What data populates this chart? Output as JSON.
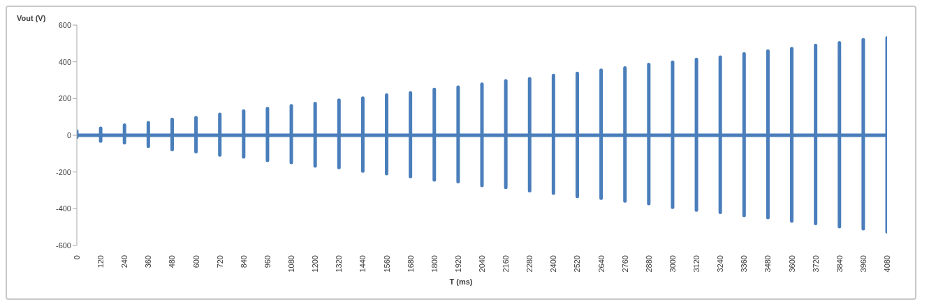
{
  "chart_data": {
    "type": "line",
    "xlabel": "T (ms)",
    "ylabel": "Vout (V)",
    "x": [
      0,
      0,
      0,
      0,
      120,
      120,
      120,
      120,
      240,
      240,
      240,
      240,
      360,
      360,
      360,
      360,
      480,
      480,
      480,
      480,
      600,
      600,
      600,
      600,
      720,
      720,
      720,
      720,
      840,
      840,
      840,
      840,
      960,
      960,
      960,
      960,
      1080,
      1080,
      1080,
      1080,
      1200,
      1200,
      1200,
      1200,
      1320,
      1320,
      1320,
      1320,
      1440,
      1440,
      1440,
      1440,
      1560,
      1560,
      1560,
      1560,
      1680,
      1680,
      1680,
      1680,
      1800,
      1800,
      1800,
      1800,
      1920,
      1920,
      1920,
      1920,
      2040,
      2040,
      2040,
      2040,
      2160,
      2160,
      2160,
      2160,
      2280,
      2280,
      2280,
      2280,
      2400,
      2400,
      2400,
      2400,
      2520,
      2520,
      2520,
      2520,
      2640,
      2640,
      2640,
      2640,
      2760,
      2760,
      2760,
      2760,
      2880,
      2880,
      2880,
      2880,
      3000,
      3000,
      3000,
      3000,
      3120,
      3120,
      3120,
      3120,
      3240,
      3240,
      3240,
      3240,
      3360,
      3360,
      3360,
      3360,
      3480,
      3480,
      3480,
      3480,
      3600,
      3600,
      3600,
      3600,
      3720,
      3720,
      3720,
      3720,
      3840,
      3840,
      3840,
      3840,
      3960,
      3960,
      3960,
      3960,
      4080,
      4080,
      4080,
      4080
    ],
    "series": [
      {
        "color": "#4a7ebb",
        "values": [
          0,
          23,
          -10,
          0,
          0,
          38,
          -31,
          0,
          0,
          55,
          -41,
          0,
          0,
          68,
          -60,
          0,
          0,
          86,
          -78,
          0,
          0,
          96,
          -89,
          0,
          0,
          114,
          -107,
          0,
          0,
          132,
          -118,
          0,
          0,
          145,
          -137,
          0,
          0,
          160,
          -148,
          0,
          0,
          173,
          -167,
          0,
          0,
          191,
          -176,
          0,
          0,
          202,
          -195,
          0,
          0,
          219,
          -209,
          0,
          0,
          231,
          -225,
          0,
          0,
          250,
          -243,
          0,
          0,
          262,
          -253,
          0,
          0,
          278,
          -273,
          0,
          0,
          296,
          -284,
          0,
          0,
          308,
          -302,
          0,
          0,
          326,
          -315,
          0,
          0,
          337,
          -333,
          0,
          0,
          354,
          -343,
          0,
          0,
          366,
          -358,
          0,
          0,
          385,
          -372,
          0,
          0,
          398,
          -392,
          0,
          0,
          413,
          -407,
          0,
          0,
          425,
          -420,
          0,
          0,
          443,
          -437,
          0,
          0,
          459,
          -448,
          0,
          0,
          472,
          -467,
          0,
          0,
          489,
          -480,
          0,
          0,
          503,
          -497,
          0,
          0,
          520,
          -509,
          0,
          0,
          530,
          -526,
          0
        ]
      }
    ],
    "xlim": [
      0,
      4080
    ],
    "xticks": [
      0,
      120,
      240,
      360,
      480,
      600,
      720,
      840,
      960,
      1080,
      1200,
      1320,
      1440,
      1560,
      1680,
      1800,
      1920,
      2040,
      2160,
      2280,
      2400,
      2520,
      2640,
      2760,
      2880,
      3000,
      3120,
      3240,
      3360,
      3480,
      3600,
      3720,
      3840,
      3960,
      4080
    ],
    "ylim": [
      -600,
      600
    ],
    "yticks": [
      -600,
      -400,
      -200,
      0,
      200,
      400,
      600
    ],
    "marker": "none",
    "line_style": "solid"
  }
}
